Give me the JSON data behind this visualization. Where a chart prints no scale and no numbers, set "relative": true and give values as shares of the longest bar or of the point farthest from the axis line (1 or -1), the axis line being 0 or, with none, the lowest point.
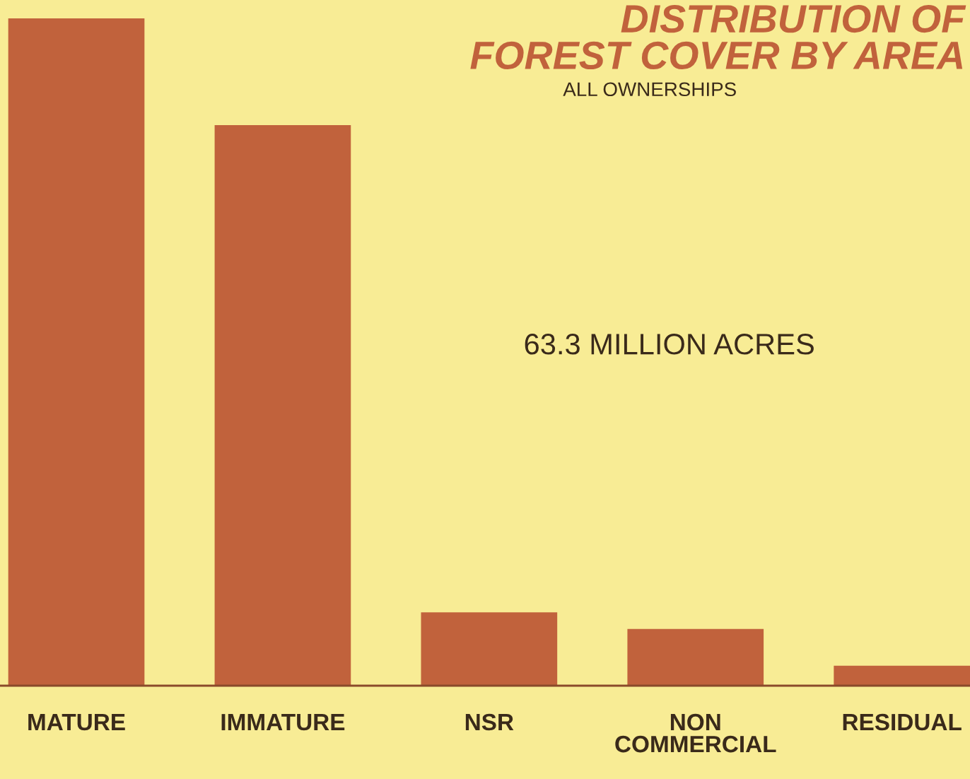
{
  "chart_data": {
    "type": "bar",
    "title": "DISTRIBUTION OF\nFOREST COVER BY AREA",
    "subtitle": "ALL OWNERSHIPS",
    "annotations": [
      "63.3 MILLION ACRES"
    ],
    "categories": [
      "MATURE",
      "IMMATURE",
      "NSR",
      "NON\nCOMMERCIAL",
      "RESIDUAL"
    ],
    "values": [
      1,
      0.84,
      0.11,
      0.085,
      0.03
    ],
    "color": "#c1623c",
    "relative": true,
    "grid": false,
    "legend": false
  }
}
